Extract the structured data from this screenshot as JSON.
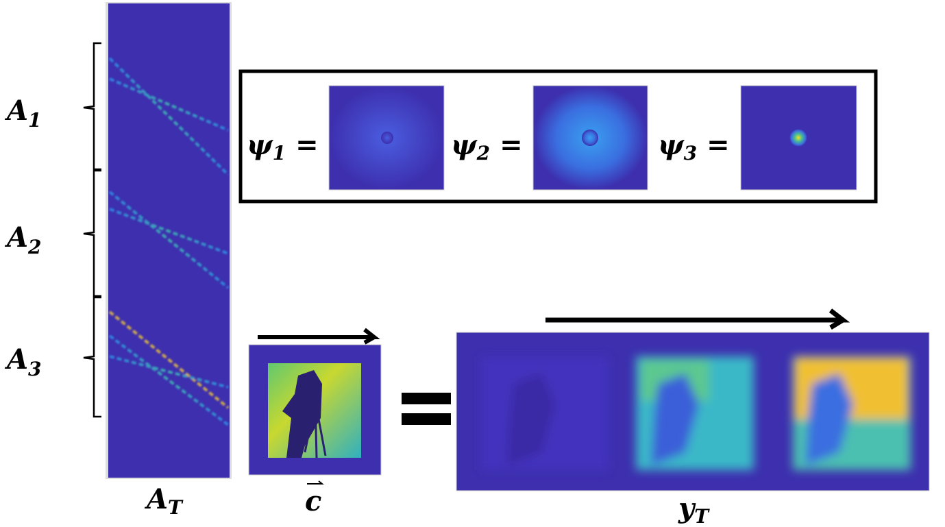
{
  "matrix": {
    "label": {
      "base": "A",
      "sub": "T"
    },
    "blocks": [
      {
        "base": "A",
        "sub": "1"
      },
      {
        "base": "A",
        "sub": "2"
      },
      {
        "base": "A",
        "sub": "3"
      }
    ]
  },
  "kernels": [
    {
      "base": "ψ",
      "sub": "1",
      "eq": "="
    },
    {
      "base": "ψ",
      "sub": "2",
      "eq": "="
    },
    {
      "base": "ψ",
      "sub": "3",
      "eq": "="
    }
  ],
  "input": {
    "label": "c"
  },
  "output": {
    "label": {
      "base": "y",
      "sub": "T"
    }
  }
}
